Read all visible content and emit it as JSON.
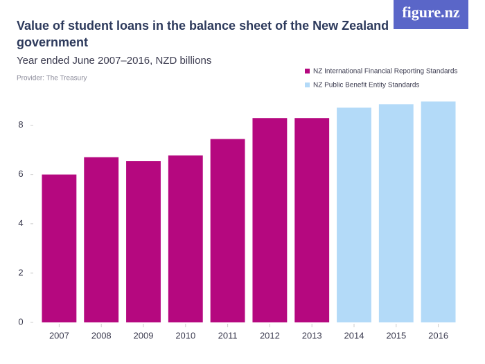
{
  "brand": "figure.nz",
  "chart_data": {
    "type": "bar",
    "title": "Value of student loans in the balance sheet of the New Zealand government",
    "subtitle": "Year ended June 2007–2016, NZD billions",
    "provider": "Provider: The Treasury",
    "categories": [
      "2007",
      "2008",
      "2009",
      "2010",
      "2011",
      "2012",
      "2013",
      "2014",
      "2015",
      "2016"
    ],
    "series": [
      {
        "name": "NZ International Financial Reporting Standards",
        "color": "#b5087f",
        "values": [
          6.0,
          6.7,
          6.55,
          6.77,
          7.44,
          8.29,
          8.29,
          null,
          null,
          null
        ]
      },
      {
        "name": "NZ Public Benefit Entity Standards",
        "color": "#b3daf8",
        "values": [
          null,
          null,
          null,
          null,
          null,
          null,
          null,
          8.71,
          8.85,
          8.96
        ]
      }
    ],
    "ylim": [
      0,
      9
    ],
    "yticks": [
      0,
      2,
      4,
      6,
      8
    ],
    "grid": false
  }
}
